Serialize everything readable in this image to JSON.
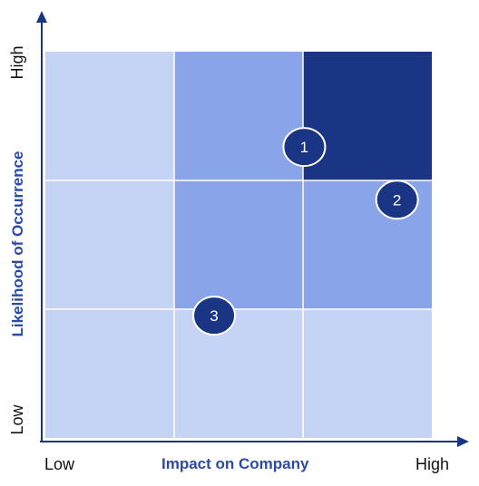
{
  "matrix": {
    "x_axis": {
      "title": "Impact on Company",
      "low": "Low",
      "high": "High"
    },
    "y_axis": {
      "title": "Likelihood of Occurrence",
      "low": "Low",
      "high": "High"
    },
    "colors": {
      "level_low": "#c5d3f4",
      "level_mid": "#8aa4ea",
      "level_high": "#1b3585",
      "marker": "#1b3585",
      "axis": "#1b3585",
      "gridline": "#ffffff"
    },
    "cells": [
      {
        "impact": "Low",
        "likelihood": "High",
        "level": "low"
      },
      {
        "impact": "Medium",
        "likelihood": "High",
        "level": "mid"
      },
      {
        "impact": "High",
        "likelihood": "High",
        "level": "high"
      },
      {
        "impact": "Low",
        "likelihood": "Medium",
        "level": "low"
      },
      {
        "impact": "Medium",
        "likelihood": "Medium",
        "level": "mid"
      },
      {
        "impact": "High",
        "likelihood": "Medium",
        "level": "mid"
      },
      {
        "impact": "Low",
        "likelihood": "Low",
        "level": "low"
      },
      {
        "impact": "Medium",
        "likelihood": "Low",
        "level": "low"
      },
      {
        "impact": "High",
        "likelihood": "Low",
        "level": "low"
      }
    ],
    "markers": [
      {
        "label": "1",
        "impact": 2.01,
        "likelihood": 2.26
      },
      {
        "label": "2",
        "impact": 2.73,
        "likelihood": 1.85
      },
      {
        "label": "3",
        "impact": 1.31,
        "likelihood": 0.95
      }
    ]
  }
}
